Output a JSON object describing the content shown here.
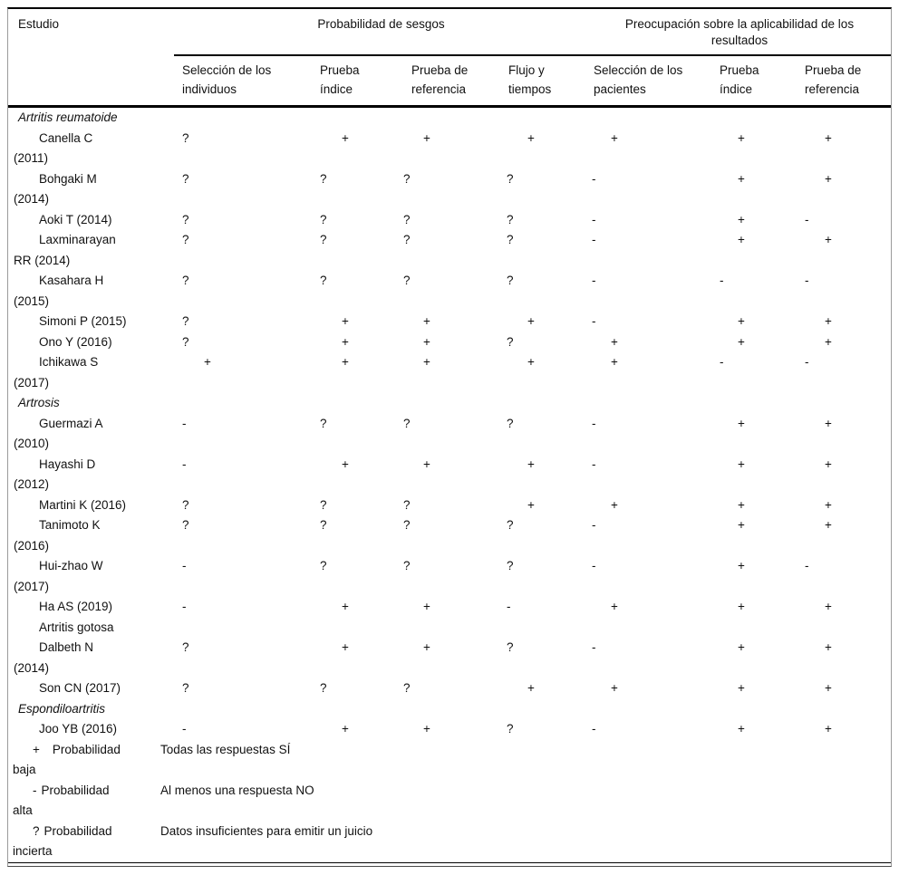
{
  "header": {
    "study_col": "Estudio",
    "groups": [
      {
        "label": "Probabilidad de sesgos",
        "columns": [
          [
            "Selección de los",
            "individuos"
          ],
          [
            "Prueba",
            "índice"
          ],
          [
            "Prueba de",
            "referencia"
          ],
          [
            "Flujo y",
            "tiempos"
          ]
        ]
      },
      {
        "label": "Preocupación sobre la aplicabilidad de los resultados",
        "columns": [
          [
            "Selección de los",
            "pacientes"
          ],
          [
            "Prueba",
            "índice"
          ],
          [
            "Prueba de",
            "referencia"
          ]
        ]
      }
    ]
  },
  "rows": [
    {
      "type": "section",
      "lines": [
        "Artritis reumatoide"
      ]
    },
    {
      "type": "study",
      "lines": [
        "Canella C",
        "(2011)"
      ],
      "values": [
        "?",
        "+",
        "+",
        "+",
        "+",
        "+",
        "+"
      ]
    },
    {
      "type": "study",
      "lines": [
        "Bohgaki M",
        "(2014)"
      ],
      "values": [
        "?",
        "?",
        "?",
        "?",
        "-",
        "+",
        "+"
      ]
    },
    {
      "type": "study",
      "lines": [
        "Aoki T (2014)"
      ],
      "values": [
        "?",
        "?",
        "?",
        "?",
        "-",
        "+",
        "-"
      ]
    },
    {
      "type": "study",
      "lines": [
        "Laxminarayan",
        "RR (2014)"
      ],
      "values": [
        "?",
        "?",
        "?",
        "?",
        "-",
        "+",
        "+"
      ]
    },
    {
      "type": "study",
      "lines": [
        "Kasahara H",
        "(2015)"
      ],
      "values": [
        "?",
        "?",
        "?",
        "?",
        "-",
        "-",
        "-"
      ]
    },
    {
      "type": "study",
      "lines": [
        "Simoni P (2015)"
      ],
      "values": [
        "?",
        "+",
        "+",
        "+",
        "-",
        "+",
        "+"
      ]
    },
    {
      "type": "study",
      "lines": [
        "Ono Y (2016)"
      ],
      "values": [
        "?",
        "+",
        "+",
        "?",
        "+",
        "+",
        "+"
      ]
    },
    {
      "type": "study",
      "lines": [
        "Ichikawa S",
        "(2017)"
      ],
      "values": [
        "+",
        "+",
        "+",
        "+",
        "+",
        "-",
        "-"
      ]
    },
    {
      "type": "section",
      "lines": [
        "Artrosis"
      ]
    },
    {
      "type": "study",
      "lines": [
        "Guermazi A",
        "(2010)"
      ],
      "values": [
        "-",
        "?",
        "?",
        "?",
        "-",
        "+",
        "+"
      ]
    },
    {
      "type": "study",
      "lines": [
        "Hayashi D",
        "(2012)"
      ],
      "values": [
        "-",
        "+",
        "+",
        "+",
        "-",
        "+",
        "+"
      ]
    },
    {
      "type": "study",
      "lines": [
        "Martini K (2016)"
      ],
      "values": [
        "?",
        "?",
        "?",
        "+",
        "+",
        "+",
        "+"
      ]
    },
    {
      "type": "study",
      "lines": [
        "Tanimoto K",
        "(2016)"
      ],
      "values": [
        "?",
        "?",
        "?",
        "?",
        "-",
        "+",
        "+"
      ]
    },
    {
      "type": "study",
      "lines": [
        "Hui-zhao W",
        "(2017)"
      ],
      "values": [
        "-",
        "?",
        "?",
        "?",
        "-",
        "+",
        "-"
      ]
    },
    {
      "type": "study",
      "lines": [
        "Ha AS (2019)"
      ],
      "values": [
        "-",
        "+",
        "+",
        "-",
        "+",
        "+",
        "+"
      ]
    },
    {
      "type": "subsection",
      "lines": [
        "Artritis gotosa"
      ],
      "values": [
        "",
        "",
        "",
        "",
        "",
        "",
        ""
      ]
    },
    {
      "type": "study",
      "lines": [
        "Dalbeth N",
        "(2014)"
      ],
      "values": [
        "?",
        "+",
        "+",
        "?",
        "-",
        "+",
        "+"
      ]
    },
    {
      "type": "study",
      "lines": [
        "Son CN (2017)"
      ],
      "values": [
        "?",
        "?",
        "?",
        "+",
        "+",
        "+",
        "+"
      ]
    },
    {
      "type": "section",
      "lines": [
        "Espondiloartritis"
      ]
    },
    {
      "type": "study",
      "lines": [
        "Joo YB (2016)"
      ],
      "values": [
        "-",
        "+",
        "+",
        "?",
        "-",
        "+",
        "+"
      ]
    }
  ],
  "legend": [
    {
      "symbol": "+",
      "term": "Probabilidad",
      "term_wrap": "baja",
      "description": "Todas las respuestas SÍ"
    },
    {
      "symbol": "-",
      "term": "Probabilidad",
      "term_wrap": "alta",
      "description": "Al menos una respuesta NO"
    },
    {
      "symbol": "?",
      "term": "Probabilidad",
      "term_wrap": "incierta",
      "description": "Datos insuficientes para emitir un juicio"
    }
  ]
}
